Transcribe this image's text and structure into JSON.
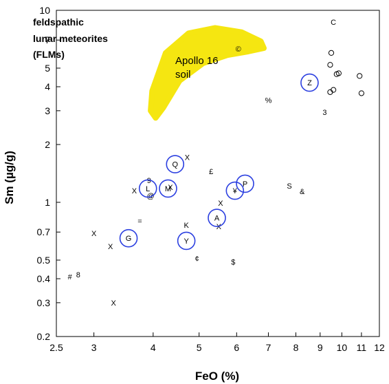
{
  "chart_data": {
    "type": "scatter",
    "title": [
      "feldspathic",
      "lunar meteorites",
      "(FLMs)"
    ],
    "xlabel": "FeO  (%)",
    "ylabel": "Sm  (µg/g)",
    "x_scale": "log",
    "y_scale": "log",
    "xlim": [
      2.5,
      12
    ],
    "ylim": [
      0.2,
      10
    ],
    "x_ticks": [
      2.5,
      3,
      4,
      5,
      6,
      7,
      8,
      9,
      10,
      11,
      12
    ],
    "y_ticks": [
      0.2,
      0.3,
      0.4,
      0.5,
      0.7,
      1,
      2,
      3,
      4,
      5,
      7,
      10
    ],
    "x_tick_labels": [
      "2.5",
      "3",
      "4",
      "5",
      "6",
      "7",
      "8",
      "9",
      "10",
      "11",
      "12"
    ],
    "y_tick_labels": [
      "0.2",
      "0.3",
      "0.4",
      "0.5",
      "0.7",
      "1",
      "2",
      "3",
      "4",
      "5",
      "7",
      "10"
    ],
    "grid": false,
    "region": {
      "label": [
        "Apollo 16",
        "soil"
      ],
      "color": "#f5e611"
    },
    "circle_color": "#2b3fe0",
    "circled_points": [
      {
        "label": "Q",
        "x": 4.45,
        "y": 1.58
      },
      {
        "label": "L",
        "x": 3.9,
        "y": 1.18
      },
      {
        "label": "M",
        "x": 4.3,
        "y": 1.18
      },
      {
        "label": "¥",
        "x": 5.95,
        "y": 1.15
      },
      {
        "label": "P",
        "x": 6.25,
        "y": 1.25
      },
      {
        "label": "A",
        "x": 5.45,
        "y": 0.83
      },
      {
        "label": "G",
        "x": 3.55,
        "y": 0.65
      },
      {
        "label": "Y",
        "x": 4.7,
        "y": 0.63
      },
      {
        "label": "Z",
        "x": 8.55,
        "y": 4.2
      }
    ],
    "symbol_points": [
      {
        "s": "X",
        "x": 4.72,
        "y": 1.72
      },
      {
        "s": "£",
        "x": 5.3,
        "y": 1.45
      },
      {
        "s": "S",
        "x": 7.75,
        "y": 1.22
      },
      {
        "s": "&",
        "x": 8.25,
        "y": 1.14
      },
      {
        "s": "X",
        "x": 3.65,
        "y": 1.15
      },
      {
        "s": "9",
        "x": 3.92,
        "y": 1.3
      },
      {
        "s": "X",
        "x": 4.35,
        "y": 1.2
      },
      {
        "s": "@",
        "x": 3.95,
        "y": 1.08
      },
      {
        "s": "X",
        "x": 5.55,
        "y": 0.99
      },
      {
        "s": "K",
        "x": 4.7,
        "y": 0.76
      },
      {
        "s": "=",
        "x": 3.75,
        "y": 0.8
      },
      {
        "s": "X",
        "x": 5.5,
        "y": 0.75
      },
      {
        "s": "X",
        "x": 3.0,
        "y": 0.69
      },
      {
        "s": "X",
        "x": 3.25,
        "y": 0.59
      },
      {
        "s": "¢",
        "x": 4.95,
        "y": 0.51
      },
      {
        "s": "$",
        "x": 5.9,
        "y": 0.49
      },
      {
        "s": "#",
        "x": 2.67,
        "y": 0.41
      },
      {
        "s": "8",
        "x": 2.78,
        "y": 0.42
      },
      {
        "s": "X",
        "x": 3.3,
        "y": 0.3
      },
      {
        "s": "%",
        "x": 7.0,
        "y": 3.4
      },
      {
        "s": "3",
        "x": 9.2,
        "y": 2.95
      },
      {
        "s": "C",
        "x": 9.6,
        "y": 8.7
      },
      {
        "s": "©",
        "x": 6.05,
        "y": 6.3
      }
    ],
    "open_circles": [
      {
        "x": 9.5,
        "y": 6.0
      },
      {
        "x": 9.45,
        "y": 5.2
      },
      {
        "x": 9.75,
        "y": 4.65
      },
      {
        "x": 9.85,
        "y": 4.7
      },
      {
        "x": 10.9,
        "y": 4.55
      },
      {
        "x": 9.45,
        "y": 3.75
      },
      {
        "x": 9.6,
        "y": 3.85
      },
      {
        "x": 11.0,
        "y": 3.7
      }
    ]
  }
}
